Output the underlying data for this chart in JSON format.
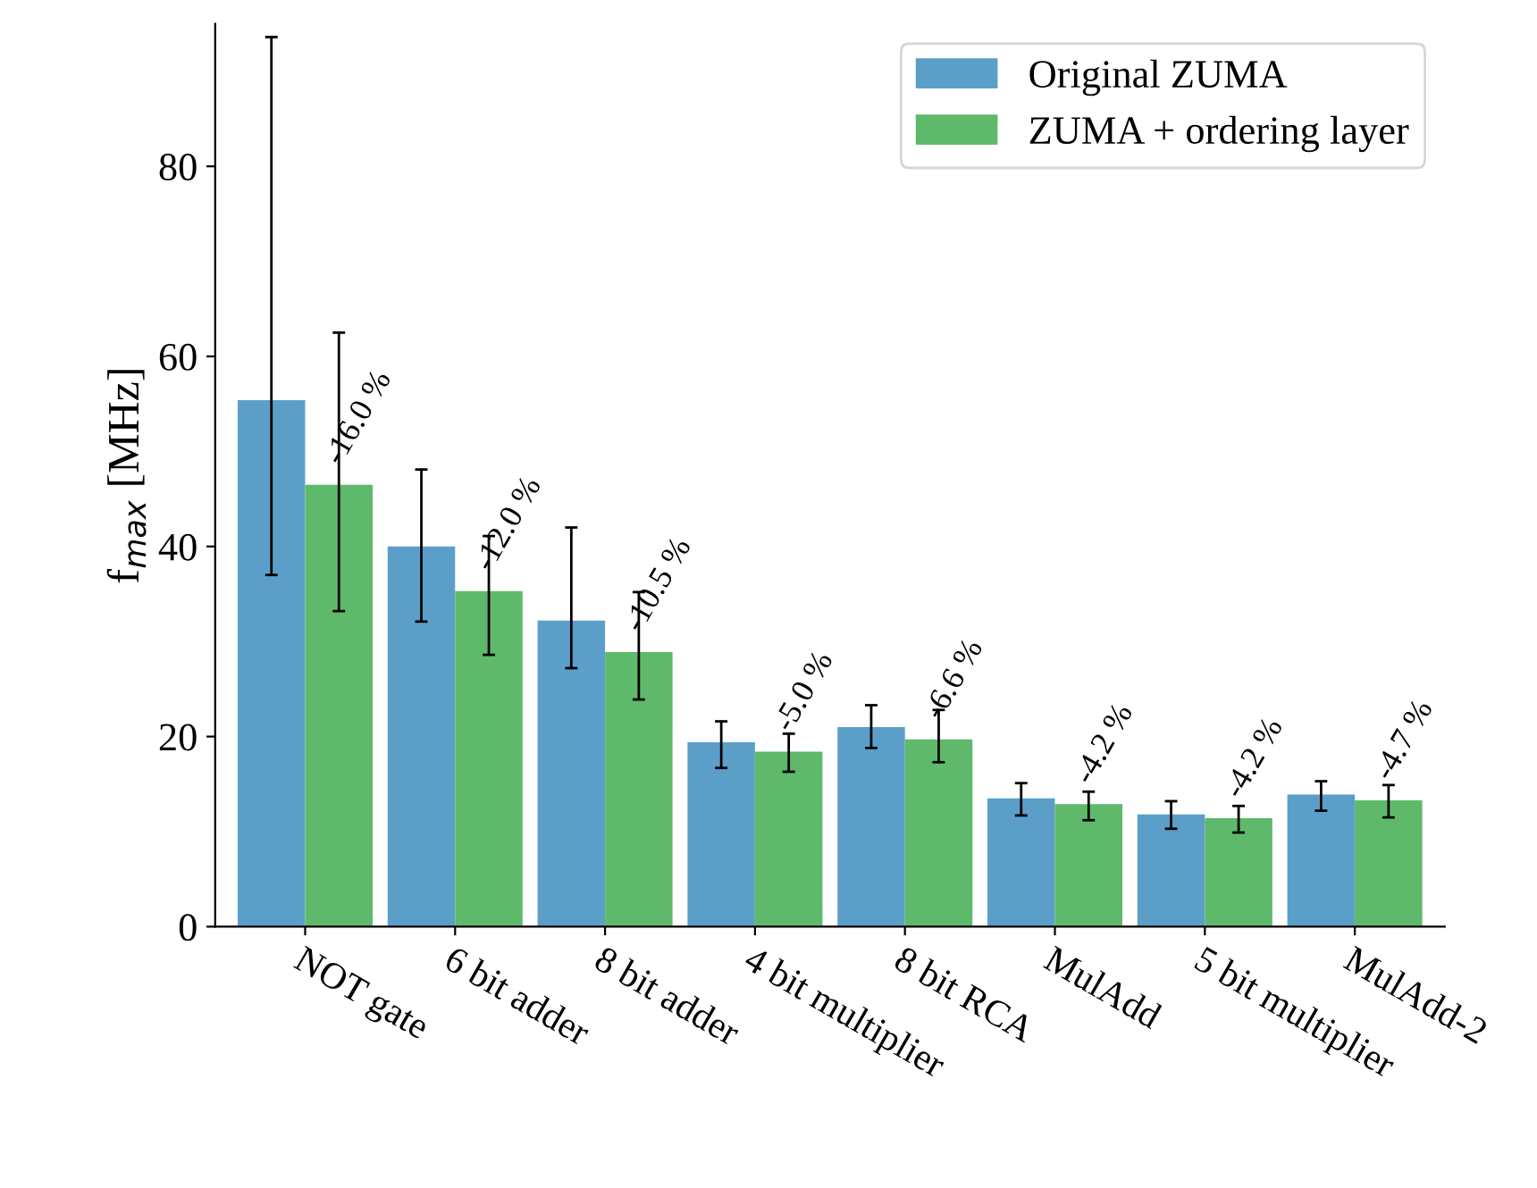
{
  "chart_data": {
    "type": "bar",
    "ylabel": "f$_{max}$ [MHz]",
    "categories": [
      "NOT gate",
      "6 bit adder",
      "8 bit adder",
      "4 bit multiplier",
      "8 bit RCA",
      "MulAdd",
      "5 bit multiplier",
      "MulAdd-2"
    ],
    "series": [
      {
        "name": "Original ZUMA",
        "color": "#5b9fc9",
        "values": [
          55.4,
          40.0,
          32.2,
          19.4,
          21.0,
          13.5,
          11.8,
          13.9
        ],
        "errors": [
          [
            37.0,
            93.6
          ],
          [
            32.1,
            48.1
          ],
          [
            27.2,
            42.0
          ],
          [
            16.7,
            21.6
          ],
          [
            18.8,
            23.3
          ],
          [
            11.7,
            15.1
          ],
          [
            10.3,
            13.2
          ],
          [
            12.2,
            15.3
          ]
        ]
      },
      {
        "name": "ZUMA + ordering layer",
        "color": "#5fb96b",
        "values": [
          46.5,
          35.3,
          28.9,
          18.4,
          19.7,
          12.9,
          11.4,
          13.3
        ],
        "errors": [
          [
            33.2,
            62.5
          ],
          [
            28.6,
            41.1
          ],
          [
            23.9,
            35.2
          ],
          [
            16.3,
            20.3
          ],
          [
            17.3,
            22.8
          ],
          [
            11.2,
            14.2
          ],
          [
            9.9,
            12.7
          ],
          [
            11.5,
            14.9
          ]
        ]
      }
    ],
    "annotations": [
      "-16.0 %",
      "-12.0 %",
      "-10.5 %",
      "-5.0 %",
      "-6.6 %",
      "-4.2 %",
      "-4.2 %",
      "-4.7 %"
    ],
    "ylim": [
      0,
      95
    ],
    "yticks": [
      0,
      20,
      40,
      60,
      80
    ],
    "grid": false,
    "legend": "top right"
  }
}
